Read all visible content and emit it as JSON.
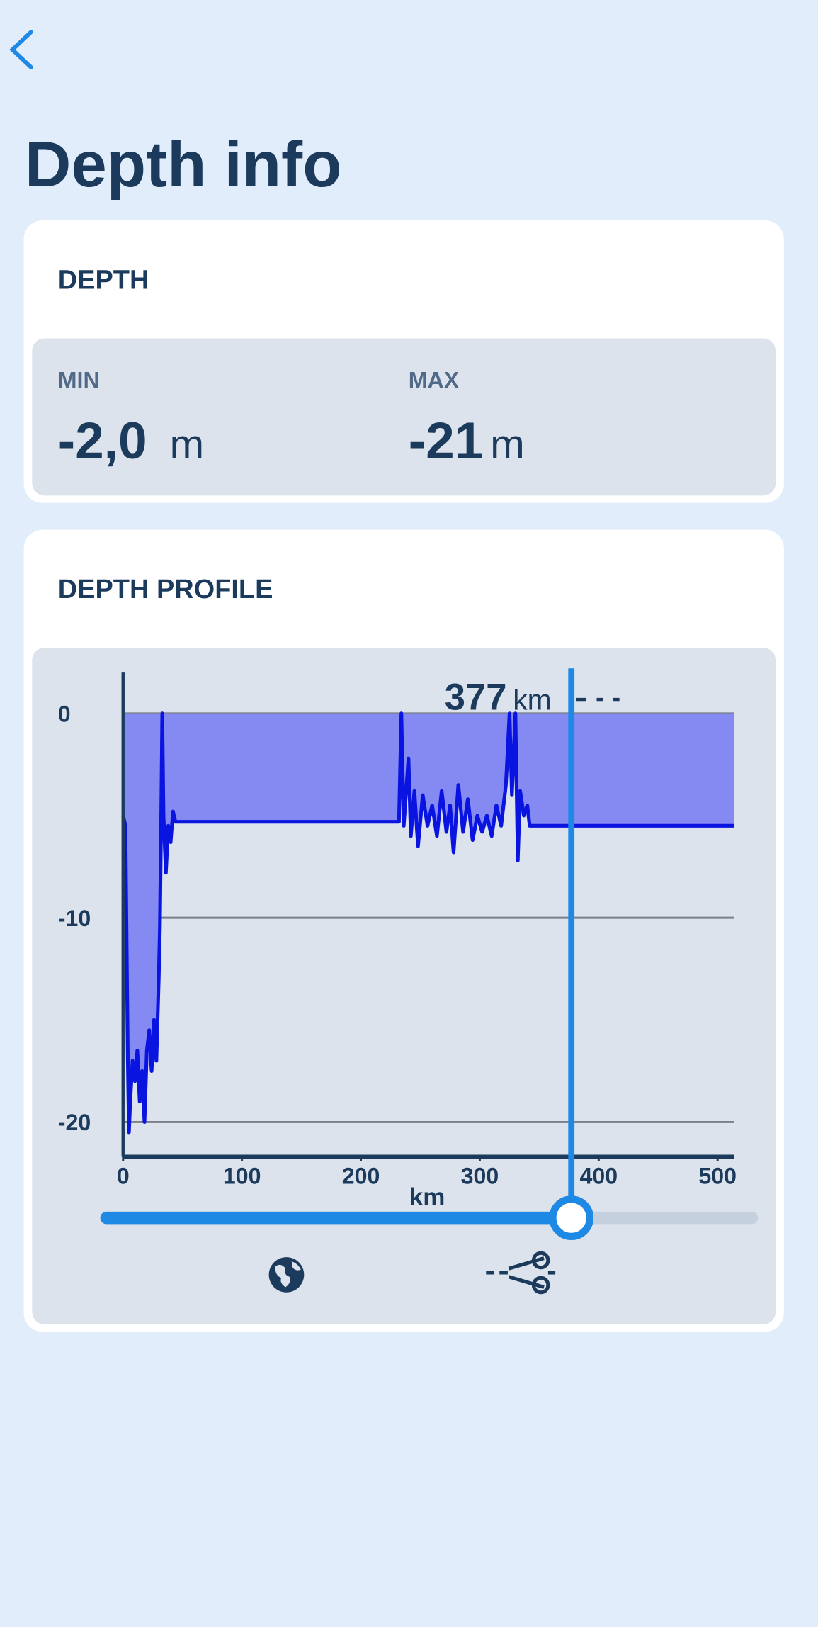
{
  "header": {
    "title": "Depth info"
  },
  "depth_card": {
    "title": "DEPTH",
    "min_label": "MIN",
    "min_value": "-2,0",
    "min_unit": "m",
    "max_label": "MAX",
    "max_value": "-21",
    "max_unit": "m"
  },
  "profile_card": {
    "title": "DEPTH PROFILE"
  },
  "chart_data": {
    "type": "area",
    "x_label": "km",
    "x": [
      0,
      2,
      4,
      5,
      6,
      8,
      10,
      12,
      14,
      16,
      18,
      20,
      22,
      24,
      26,
      28,
      30,
      31,
      32,
      33,
      34,
      36,
      38,
      40,
      42,
      44,
      100,
      200,
      232,
      234,
      236,
      240,
      242,
      245,
      248,
      252,
      256,
      260,
      264,
      268,
      272,
      275,
      278,
      282,
      286,
      290,
      294,
      298,
      302,
      306,
      310,
      314,
      318,
      322,
      325,
      327,
      330,
      332,
      334,
      337,
      340,
      342,
      400,
      514
    ],
    "values": [
      -5,
      -5.5,
      -17,
      -20.5,
      -19,
      -17,
      -18,
      -16.5,
      -19,
      -17.5,
      -20,
      -16.5,
      -15.5,
      -17.5,
      -15,
      -17,
      -13,
      -10.5,
      -5.3,
      0,
      -5,
      -7.8,
      -5.5,
      -6.3,
      -4.8,
      -5.3,
      -5.3,
      -5.3,
      -5.3,
      0,
      -5.5,
      -2.2,
      -6,
      -3.8,
      -6.5,
      -4,
      -5.5,
      -4.5,
      -6,
      -3.8,
      -5.8,
      -4.5,
      -6.8,
      -3.5,
      -5.8,
      -4.2,
      -6.2,
      -5,
      -5.8,
      -5,
      -6,
      -4.5,
      -5.5,
      -3.5,
      0,
      -4,
      0,
      -7.2,
      -3.8,
      -5,
      -4.5,
      -5.5,
      -5.5,
      -5.5
    ],
    "color": "#0a14e0",
    "fill": "#8589f2",
    "xlim": [
      0,
      514
    ],
    "xticks": [
      0,
      100,
      200,
      300,
      400,
      500
    ],
    "ylim": [
      -21.7,
      2
    ],
    "yticks": [
      0,
      -10,
      -20
    ],
    "grid": true,
    "cursor": 377,
    "cursor_unit": "km"
  }
}
